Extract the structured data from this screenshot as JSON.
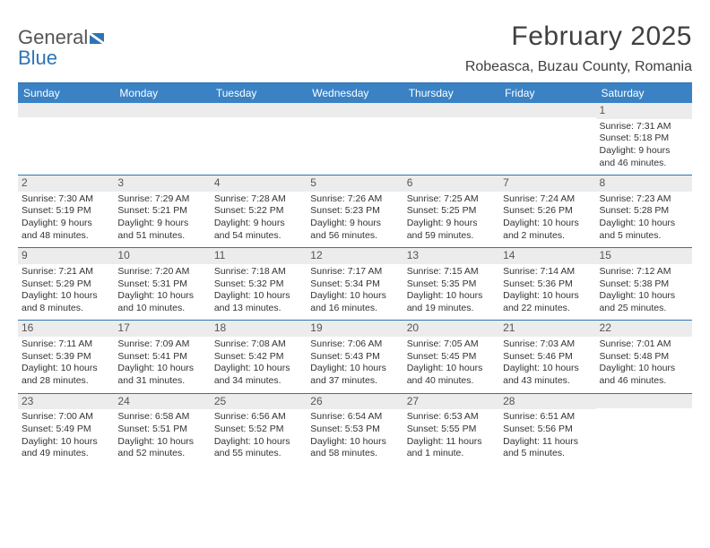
{
  "logo": {
    "word1": "General",
    "word2": "Blue"
  },
  "title": "February 2025",
  "location": "Robeasca, Buzau County, Romania",
  "colors": {
    "accent": "#2e74b5",
    "header_bg": "#3a82c4",
    "header_fg": "#ffffff",
    "daynum_bg": "#ececec",
    "text": "#333333",
    "background": "#ffffff"
  },
  "day_names": [
    "Sunday",
    "Monday",
    "Tuesday",
    "Wednesday",
    "Thursday",
    "Friday",
    "Saturday"
  ],
  "weeks": [
    [
      {
        "empty": true
      },
      {
        "empty": true
      },
      {
        "empty": true
      },
      {
        "empty": true
      },
      {
        "empty": true
      },
      {
        "empty": true
      },
      {
        "n": "1",
        "sunrise": "Sunrise: 7:31 AM",
        "sunset": "Sunset: 5:18 PM",
        "day1": "Daylight: 9 hours",
        "day2": "and 46 minutes."
      }
    ],
    [
      {
        "n": "2",
        "sunrise": "Sunrise: 7:30 AM",
        "sunset": "Sunset: 5:19 PM",
        "day1": "Daylight: 9 hours",
        "day2": "and 48 minutes."
      },
      {
        "n": "3",
        "sunrise": "Sunrise: 7:29 AM",
        "sunset": "Sunset: 5:21 PM",
        "day1": "Daylight: 9 hours",
        "day2": "and 51 minutes."
      },
      {
        "n": "4",
        "sunrise": "Sunrise: 7:28 AM",
        "sunset": "Sunset: 5:22 PM",
        "day1": "Daylight: 9 hours",
        "day2": "and 54 minutes."
      },
      {
        "n": "5",
        "sunrise": "Sunrise: 7:26 AM",
        "sunset": "Sunset: 5:23 PM",
        "day1": "Daylight: 9 hours",
        "day2": "and 56 minutes."
      },
      {
        "n": "6",
        "sunrise": "Sunrise: 7:25 AM",
        "sunset": "Sunset: 5:25 PM",
        "day1": "Daylight: 9 hours",
        "day2": "and 59 minutes."
      },
      {
        "n": "7",
        "sunrise": "Sunrise: 7:24 AM",
        "sunset": "Sunset: 5:26 PM",
        "day1": "Daylight: 10 hours",
        "day2": "and 2 minutes."
      },
      {
        "n": "8",
        "sunrise": "Sunrise: 7:23 AM",
        "sunset": "Sunset: 5:28 PM",
        "day1": "Daylight: 10 hours",
        "day2": "and 5 minutes."
      }
    ],
    [
      {
        "n": "9",
        "sunrise": "Sunrise: 7:21 AM",
        "sunset": "Sunset: 5:29 PM",
        "day1": "Daylight: 10 hours",
        "day2": "and 8 minutes."
      },
      {
        "n": "10",
        "sunrise": "Sunrise: 7:20 AM",
        "sunset": "Sunset: 5:31 PM",
        "day1": "Daylight: 10 hours",
        "day2": "and 10 minutes."
      },
      {
        "n": "11",
        "sunrise": "Sunrise: 7:18 AM",
        "sunset": "Sunset: 5:32 PM",
        "day1": "Daylight: 10 hours",
        "day2": "and 13 minutes."
      },
      {
        "n": "12",
        "sunrise": "Sunrise: 7:17 AM",
        "sunset": "Sunset: 5:34 PM",
        "day1": "Daylight: 10 hours",
        "day2": "and 16 minutes."
      },
      {
        "n": "13",
        "sunrise": "Sunrise: 7:15 AM",
        "sunset": "Sunset: 5:35 PM",
        "day1": "Daylight: 10 hours",
        "day2": "and 19 minutes."
      },
      {
        "n": "14",
        "sunrise": "Sunrise: 7:14 AM",
        "sunset": "Sunset: 5:36 PM",
        "day1": "Daylight: 10 hours",
        "day2": "and 22 minutes."
      },
      {
        "n": "15",
        "sunrise": "Sunrise: 7:12 AM",
        "sunset": "Sunset: 5:38 PM",
        "day1": "Daylight: 10 hours",
        "day2": "and 25 minutes."
      }
    ],
    [
      {
        "n": "16",
        "sunrise": "Sunrise: 7:11 AM",
        "sunset": "Sunset: 5:39 PM",
        "day1": "Daylight: 10 hours",
        "day2": "and 28 minutes."
      },
      {
        "n": "17",
        "sunrise": "Sunrise: 7:09 AM",
        "sunset": "Sunset: 5:41 PM",
        "day1": "Daylight: 10 hours",
        "day2": "and 31 minutes."
      },
      {
        "n": "18",
        "sunrise": "Sunrise: 7:08 AM",
        "sunset": "Sunset: 5:42 PM",
        "day1": "Daylight: 10 hours",
        "day2": "and 34 minutes."
      },
      {
        "n": "19",
        "sunrise": "Sunrise: 7:06 AM",
        "sunset": "Sunset: 5:43 PM",
        "day1": "Daylight: 10 hours",
        "day2": "and 37 minutes."
      },
      {
        "n": "20",
        "sunrise": "Sunrise: 7:05 AM",
        "sunset": "Sunset: 5:45 PM",
        "day1": "Daylight: 10 hours",
        "day2": "and 40 minutes."
      },
      {
        "n": "21",
        "sunrise": "Sunrise: 7:03 AM",
        "sunset": "Sunset: 5:46 PM",
        "day1": "Daylight: 10 hours",
        "day2": "and 43 minutes."
      },
      {
        "n": "22",
        "sunrise": "Sunrise: 7:01 AM",
        "sunset": "Sunset: 5:48 PM",
        "day1": "Daylight: 10 hours",
        "day2": "and 46 minutes."
      }
    ],
    [
      {
        "n": "23",
        "sunrise": "Sunrise: 7:00 AM",
        "sunset": "Sunset: 5:49 PM",
        "day1": "Daylight: 10 hours",
        "day2": "and 49 minutes."
      },
      {
        "n": "24",
        "sunrise": "Sunrise: 6:58 AM",
        "sunset": "Sunset: 5:51 PM",
        "day1": "Daylight: 10 hours",
        "day2": "and 52 minutes."
      },
      {
        "n": "25",
        "sunrise": "Sunrise: 6:56 AM",
        "sunset": "Sunset: 5:52 PM",
        "day1": "Daylight: 10 hours",
        "day2": "and 55 minutes."
      },
      {
        "n": "26",
        "sunrise": "Sunrise: 6:54 AM",
        "sunset": "Sunset: 5:53 PM",
        "day1": "Daylight: 10 hours",
        "day2": "and 58 minutes."
      },
      {
        "n": "27",
        "sunrise": "Sunrise: 6:53 AM",
        "sunset": "Sunset: 5:55 PM",
        "day1": "Daylight: 11 hours",
        "day2": "and 1 minute."
      },
      {
        "n": "28",
        "sunrise": "Sunrise: 6:51 AM",
        "sunset": "Sunset: 5:56 PM",
        "day1": "Daylight: 11 hours",
        "day2": "and 5 minutes."
      },
      {
        "empty": true
      }
    ]
  ]
}
